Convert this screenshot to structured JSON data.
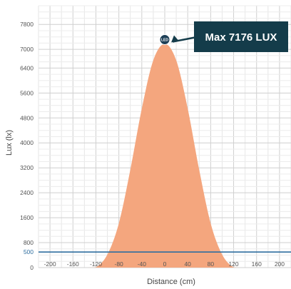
{
  "chart_data": {
    "type": "area",
    "xlabel": "Distance (cm)",
    "ylabel": "Lux (lx)",
    "xlim": [
      -220,
      220
    ],
    "ylim": [
      0,
      8400
    ],
    "x_ticks": [
      -200,
      -160,
      -120,
      -80,
      -40,
      0,
      40,
      80,
      120,
      160,
      200
    ],
    "y_ticks": [
      0,
      800,
      1600,
      2400,
      3200,
      4000,
      4800,
      5600,
      6400,
      7000,
      7800
    ],
    "grid": true,
    "series": [
      {
        "x": [
          -200,
          -180,
          -160,
          -140,
          -120,
          -100,
          -80,
          -60,
          -40,
          -20,
          0,
          20,
          40,
          60,
          80,
          100,
          120,
          140,
          160,
          180,
          200
        ],
        "values": [
          0,
          0,
          0,
          0,
          10,
          420,
          1420,
          3140,
          5100,
          6650,
          7176,
          6650,
          5100,
          3140,
          1420,
          420,
          10,
          0,
          0,
          0,
          0
        ]
      }
    ],
    "threshold": {
      "value": 500,
      "label": "500"
    },
    "peak": {
      "x": 0,
      "y": 7176,
      "marker_text": "LED"
    },
    "annotation": "Max 7176 LUX",
    "colors": {
      "fill": "#f4a67e",
      "threshold_line": "#2f6e9f",
      "callout": "#143c4a",
      "marker": "#1d3f56"
    }
  }
}
